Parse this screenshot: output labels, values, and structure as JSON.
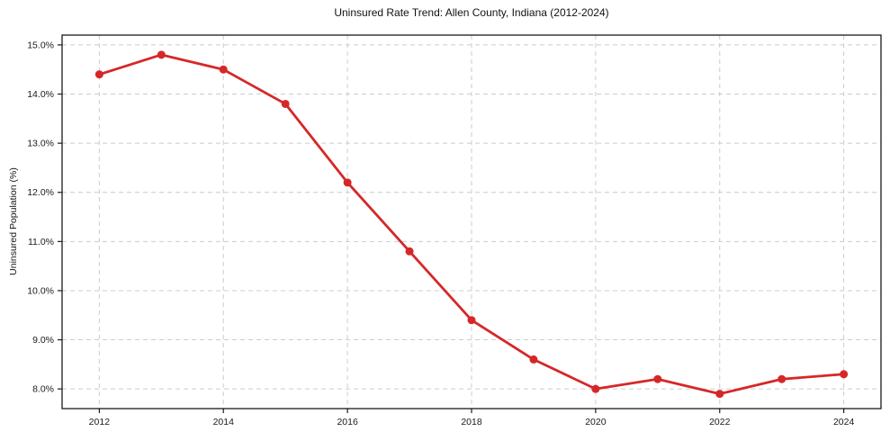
{
  "chart_data": {
    "type": "line",
    "title": "Uninsured Rate Trend: Allen County, Indiana (2012-2024)",
    "xlabel": "",
    "ylabel": "Uninsured Population (%)",
    "x": [
      2012,
      2013,
      2014,
      2015,
      2016,
      2017,
      2018,
      2019,
      2020,
      2021,
      2022,
      2023,
      2024
    ],
    "values": [
      14.4,
      14.8,
      14.5,
      13.8,
      12.2,
      10.8,
      9.4,
      8.6,
      8.0,
      8.2,
      7.9,
      8.2,
      8.3
    ],
    "series_name": "Uninsured rate",
    "x_ticks": [
      2012,
      2014,
      2016,
      2018,
      2020,
      2022,
      2024
    ],
    "x_tick_labels": [
      "2012",
      "2014",
      "2016",
      "2018",
      "2020",
      "2022",
      "2024"
    ],
    "y_ticks": [
      8,
      9,
      10,
      11,
      12,
      13,
      14,
      15
    ],
    "y_tick_labels": [
      "8.0%",
      "9.0%",
      "10.0%",
      "11.0%",
      "12.0%",
      "13.0%",
      "14.0%",
      "15.0%"
    ],
    "xlim": [
      2011.4,
      2024.6
    ],
    "ylim": [
      7.6,
      15.2
    ],
    "grid": true,
    "legend": false,
    "line_color": "#d62728",
    "grid_color": "#cccccc",
    "spine_color": "#1a1a1a",
    "marker": "circle"
  }
}
